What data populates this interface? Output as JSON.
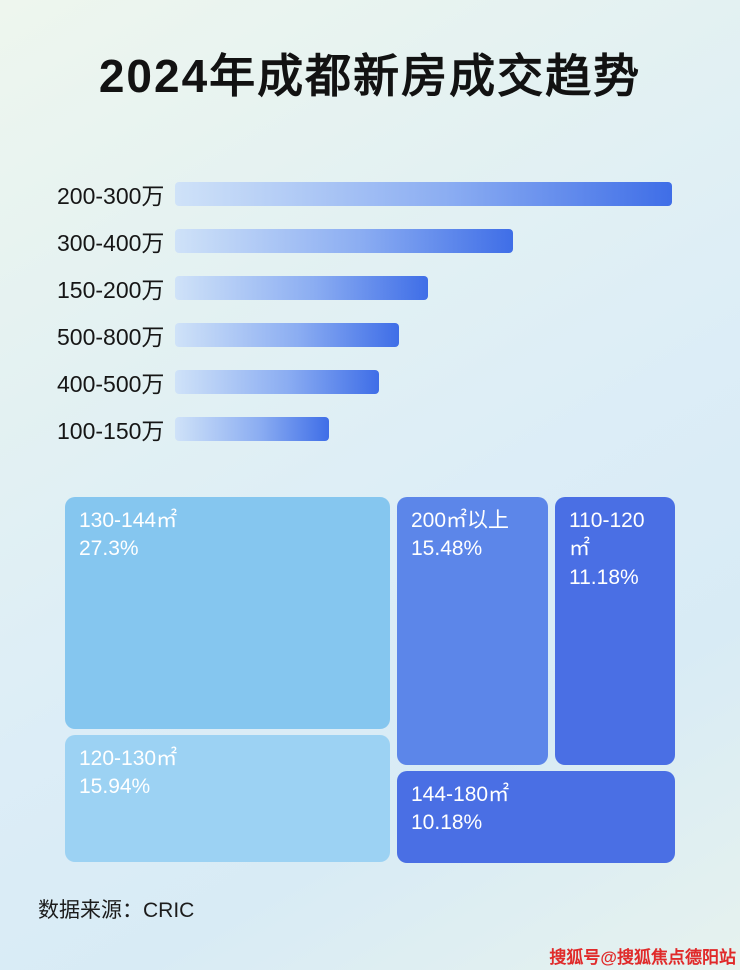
{
  "page": {
    "title": "2024年成都新房成交趋势",
    "source": "数据来源：CRIC",
    "watermark": "搜狐号@搜狐焦点德阳站"
  },
  "colors": {
    "bar_gradient_start": "#cfe2f8",
    "bar_gradient_end": "#3f6ee7",
    "watermark_red": "#e02a2a"
  },
  "chart_data": [
    {
      "type": "bar",
      "orientation": "horizontal",
      "title": "2024年成都新房成交趋势",
      "categories": [
        "200-300万",
        "300-400万",
        "150-200万",
        "500-800万",
        "400-500万",
        "100-150万"
      ],
      "values": [
        100,
        68,
        51,
        45,
        41,
        31
      ],
      "value_note": "relative bar lengths (percent of longest bar); no numeric labels shown in image",
      "xlabel": "",
      "ylabel": "",
      "grid": false,
      "legend": false
    },
    {
      "type": "treemap",
      "items": [
        {
          "label": "130-144㎡",
          "value": "27.3%",
          "color": "#85c6ef"
        },
        {
          "label": "200㎡以上",
          "value": "15.48%",
          "color": "#5c86e9"
        },
        {
          "label": "110-120㎡",
          "value": "11.18%",
          "color": "#4a6fe4"
        },
        {
          "label": "120-130㎡",
          "value": "15.94%",
          "color": "#9cd2f3"
        },
        {
          "label": "144-180㎡",
          "value": "10.18%",
          "color": "#4a6fe4"
        }
      ]
    }
  ]
}
